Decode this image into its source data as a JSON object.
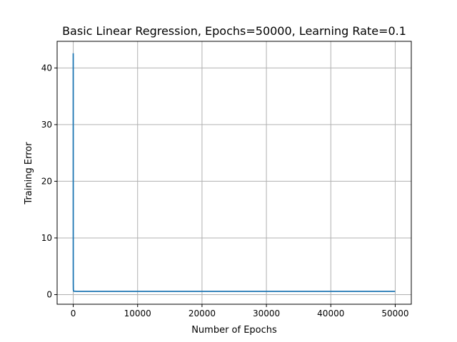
{
  "chart_data": {
    "type": "line",
    "title": "Basic Linear Regression, Epochs=50000, Learning Rate=0.1",
    "xlabel": "Number of Epochs",
    "ylabel": "Training Error",
    "xlim": [
      -2500,
      52500
    ],
    "ylim": [
      -1.7,
      44.7
    ],
    "xticks": [
      0,
      10000,
      20000,
      30000,
      40000,
      50000
    ],
    "yticks": [
      0,
      10,
      20,
      30,
      40
    ],
    "grid": true,
    "series": [
      {
        "color": "#1f77b4",
        "x": [
          0,
          5,
          10,
          20,
          50,
          100,
          500,
          1000,
          5000,
          10000,
          20000,
          30000,
          40000,
          50000
        ],
        "y": [
          42.6,
          6.5,
          2.0,
          0.9,
          0.62,
          0.6,
          0.58,
          0.58,
          0.58,
          0.58,
          0.58,
          0.58,
          0.58,
          0.58
        ]
      }
    ]
  }
}
